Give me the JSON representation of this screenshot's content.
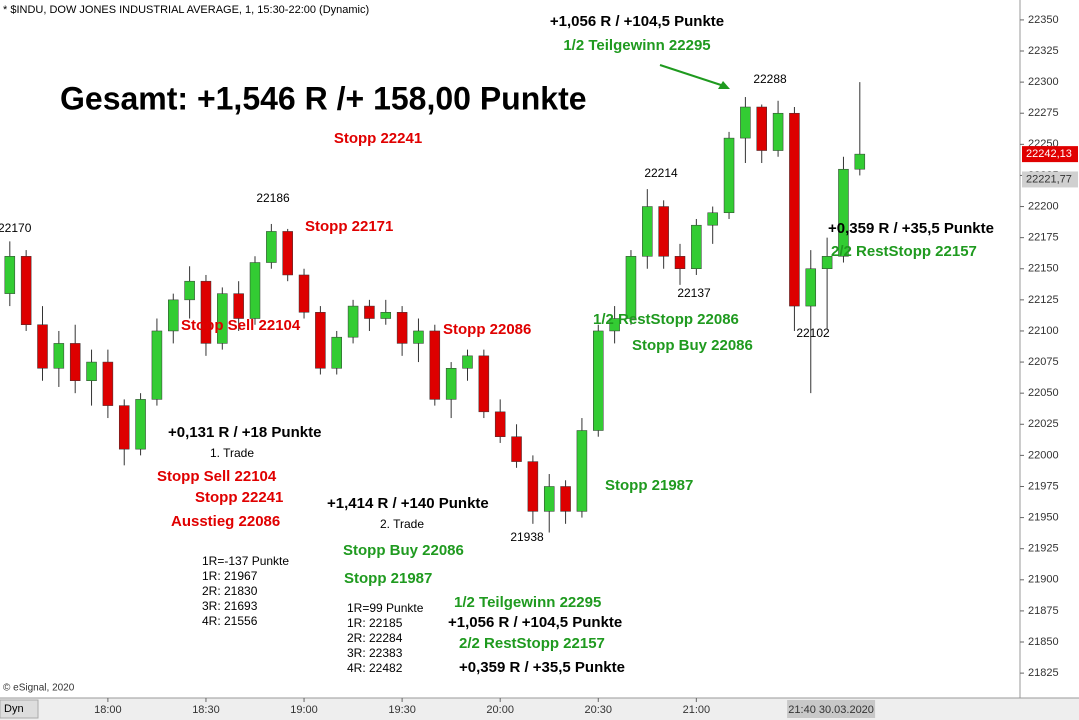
{
  "dyn_label": "Dyn",
  "footer": "© eSignal, 2020",
  "chart_data": {
    "type": "candlestick",
    "title": "* $INDU, DOW JONES INDUSTRIAL AVERAGE, 1, 15:30-22:00 (Dynamic)",
    "up_color": "#33cc33",
    "down_color": "#dd0000",
    "grid": false,
    "x": [
      "17:30",
      "17:35",
      "17:40",
      "17:45",
      "17:50",
      "17:55",
      "18:00",
      "18:05",
      "18:10",
      "18:15",
      "18:20",
      "18:25",
      "18:30",
      "18:35",
      "18:40",
      "18:45",
      "18:50",
      "18:55",
      "19:00",
      "19:05",
      "19:10",
      "19:15",
      "19:20",
      "19:25",
      "19:30",
      "19:35",
      "19:40",
      "19:45",
      "19:50",
      "19:55",
      "20:00",
      "20:05",
      "20:10",
      "20:15",
      "20:20",
      "20:25",
      "20:30",
      "20:35",
      "20:40",
      "20:45",
      "20:50",
      "20:55",
      "21:00",
      "21:05",
      "21:10",
      "21:15",
      "21:20",
      "21:25",
      "21:30",
      "21:35",
      "21:40",
      "21:45",
      "21:50"
    ],
    "open": [
      22130,
      22160,
      22105,
      22070,
      22090,
      22060,
      22075,
      22040,
      22005,
      22045,
      22100,
      22125,
      22140,
      22090,
      22130,
      22110,
      22155,
      22180,
      22145,
      22115,
      22070,
      22095,
      22120,
      22110,
      22115,
      22090,
      22100,
      22045,
      22070,
      22080,
      22035,
      22015,
      21995,
      21955,
      21975,
      21955,
      22020,
      22100,
      22110,
      22160,
      22200,
      22160,
      22150,
      22185,
      22195,
      22255,
      22280,
      22245,
      22275,
      22120,
      22150,
      22160,
      22230
    ],
    "high": [
      22172,
      22165,
      22120,
      22100,
      22105,
      22085,
      22085,
      22045,
      22050,
      22110,
      22130,
      22152,
      22145,
      22135,
      22140,
      22160,
      22186,
      22182,
      22150,
      22120,
      22100,
      22125,
      22125,
      22125,
      22120,
      22110,
      22105,
      22075,
      22085,
      22085,
      22045,
      22025,
      22000,
      21985,
      21980,
      22030,
      22105,
      22120,
      22165,
      22214,
      22205,
      22170,
      22190,
      22200,
      22260,
      22288,
      22282,
      22285,
      22280,
      22165,
      22175,
      22240,
      22300
    ],
    "low": [
      22120,
      22100,
      22060,
      22055,
      22050,
      22040,
      22030,
      21992,
      22000,
      22040,
      22090,
      22110,
      22080,
      22085,
      22100,
      22105,
      22150,
      22140,
      22110,
      22065,
      22065,
      22090,
      22100,
      22105,
      22080,
      22075,
      22040,
      22030,
      22060,
      22030,
      22010,
      21990,
      21945,
      21938,
      21945,
      21950,
      22015,
      22090,
      22105,
      22150,
      22150,
      22137,
      22145,
      22170,
      22190,
      22235,
      22235,
      22240,
      22100,
      22050,
      22102,
      22155,
      22225
    ],
    "close": [
      22160,
      22105,
      22070,
      22090,
      22060,
      22075,
      22040,
      22005,
      22045,
      22100,
      22125,
      22140,
      22090,
      22130,
      22110,
      22155,
      22180,
      22145,
      22115,
      22070,
      22095,
      22120,
      22110,
      22115,
      22090,
      22100,
      22045,
      22070,
      22080,
      22035,
      22015,
      21995,
      21955,
      21975,
      21955,
      22020,
      22100,
      22110,
      22160,
      22200,
      22160,
      22150,
      22185,
      22195,
      22255,
      22280,
      22245,
      22275,
      22120,
      22150,
      22160,
      22230,
      22242.13
    ],
    "xlim": [
      "17:27",
      "22:39"
    ],
    "xticks": [
      "18:00",
      "18:30",
      "19:00",
      "19:30",
      "20:00",
      "20:30",
      "21:00"
    ],
    "cursor_label": "21:40 30.03.2020",
    "ylim": [
      21805,
      22366
    ],
    "yticks": [
      22350,
      22325,
      22300,
      22275,
      22250,
      22225,
      22200,
      22175,
      22150,
      22125,
      22100,
      22075,
      22050,
      22025,
      22000,
      21975,
      21950,
      21925,
      21900,
      21875,
      21850,
      21825
    ],
    "price_markers": [
      {
        "value": 22242.13,
        "label": "22242,13"
      },
      {
        "value": 22221.77,
        "label": "22221,77"
      }
    ],
    "price_labels": [
      22170,
      22186,
      22214,
      22288,
      22137,
      21938,
      22102
    ],
    "annotations": [
      "+1,056 R / +104,5 Punkte",
      "1/2 Teilgewinn 22295",
      "Gesamt: +1,546 R /+ 158,00 Punkte",
      "Stopp 22241",
      "Stopp 22171",
      "Stopp  Sell 22104",
      "Stopp 22086",
      "1/2 RestStopp 22086",
      "Stopp Buy 22086",
      "+0,359 R / +35,5 Punkte",
      "2/2 RestStopp 22157",
      "+0,131 R / +18 Punkte",
      "1. Trade",
      "Stopp Sell 22104",
      "Stopp 22241",
      "Ausstieg 22086",
      "+1,414 R / +140 Punkte",
      "2. Trade",
      "Stopp Buy 22086",
      "Stopp 21987",
      "Stopp 21987",
      "1R=-137 Punkte",
      "1R: 21967",
      "2R: 21830",
      "3R: 21693",
      "4R: 21556",
      "1R=99 Punkte",
      "1R: 22185",
      "2R: 22284",
      "3R: 22383",
      "4R: 22482",
      "1/2 Teilgewinn 22295",
      "+1,056 R / +104,5 Punkte",
      "2/2 RestStopp 22157",
      "+0,359 R / +35,5 Punkte"
    ]
  }
}
